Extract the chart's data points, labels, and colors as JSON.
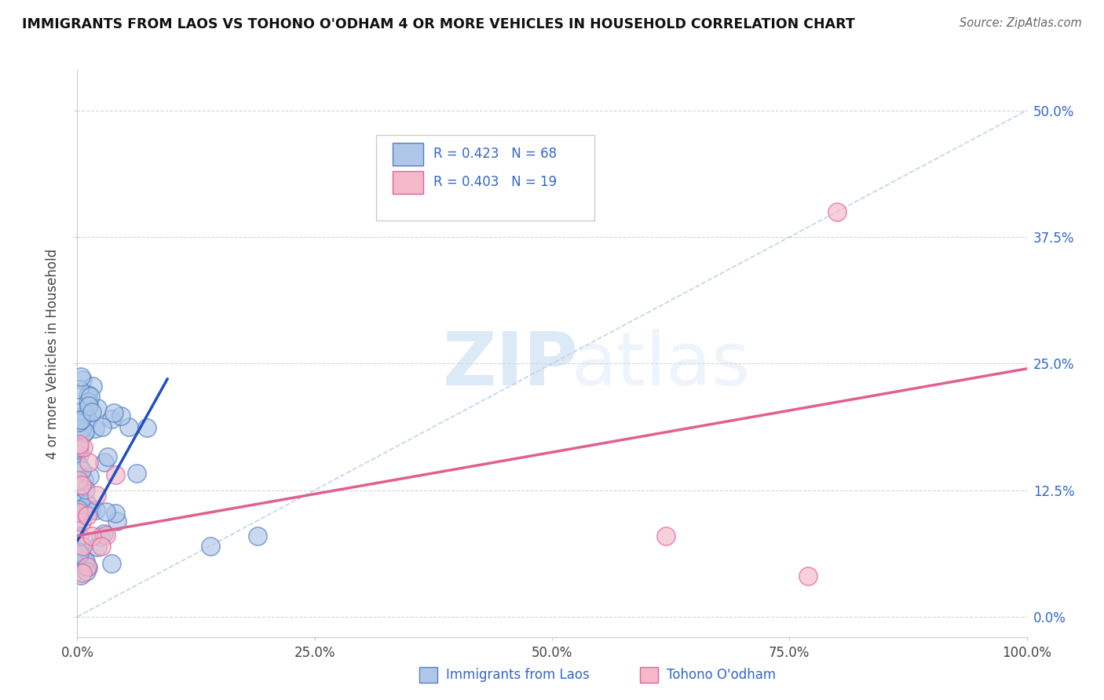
{
  "title": "IMMIGRANTS FROM LAOS VS TOHONO O'ODHAM 4 OR MORE VEHICLES IN HOUSEHOLD CORRELATION CHART",
  "source": "Source: ZipAtlas.com",
  "ylabel": "4 or more Vehicles in Household",
  "xlim": [
    0.0,
    1.0
  ],
  "ylim": [
    -0.02,
    0.54
  ],
  "xtick_labels": [
    "0.0%",
    "25.0%",
    "50.0%",
    "75.0%",
    "100.0%"
  ],
  "ytick_labels": [
    "0.0%",
    "12.5%",
    "25.0%",
    "37.5%",
    "50.0%"
  ],
  "blue_R": 0.423,
  "blue_N": 68,
  "pink_R": 0.403,
  "pink_N": 19,
  "blue_fill": "#aec6e8",
  "pink_fill": "#f4b8c8",
  "blue_edge": "#5080c0",
  "pink_edge": "#e060a0",
  "diag_line_color": "#b8cfe8",
  "blue_line_color": "#2050c0",
  "pink_line_color": "#e06090",
  "background_color": "#ffffff",
  "watermark_zip": "ZIP",
  "watermark_atlas": "atlas",
  "legend_label_color": "#3366cc",
  "legend_r_n_color": "#3366cc",
  "right_axis_color": "#3366cc",
  "bottom_legend_color": "#3366cc",
  "blue_trend_x0": 0.0,
  "blue_trend_x1": 0.095,
  "blue_trend_y0": 0.075,
  "blue_trend_y1": 0.235,
  "pink_trend_x0": 0.0,
  "pink_trend_x1": 1.0,
  "pink_trend_y0": 0.08,
  "pink_trend_y1": 0.245
}
